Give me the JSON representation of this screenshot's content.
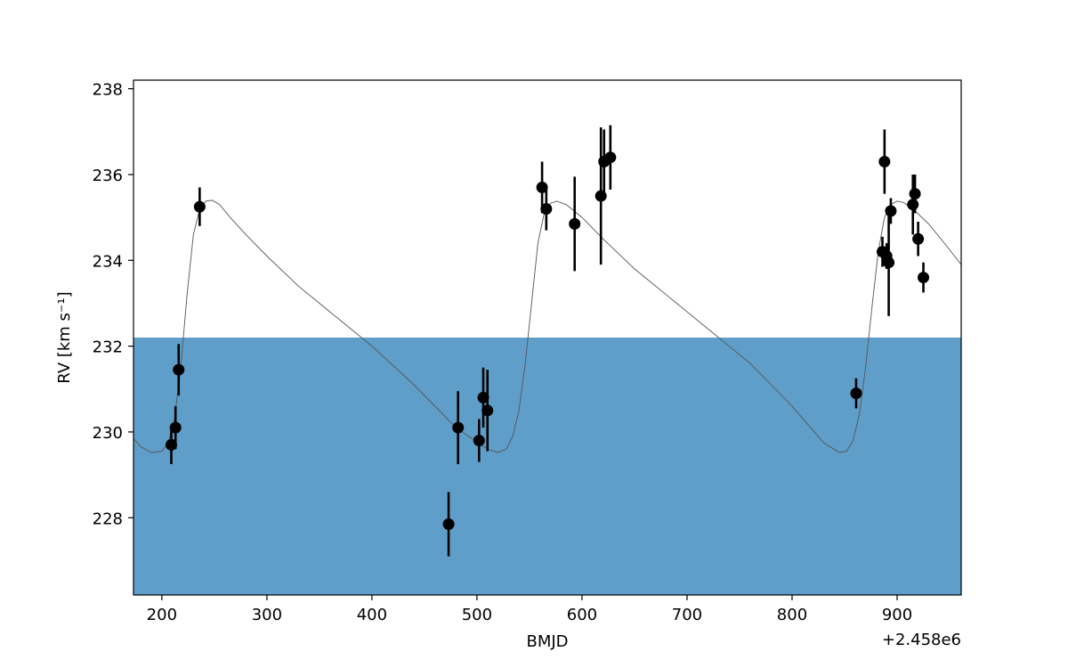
{
  "chart_data": {
    "type": "scatter",
    "title": "",
    "xlabel": "BMJD",
    "ylabel": "RV [km s⁻¹]",
    "x_offset_label": "+2.458e6",
    "xlim": [
      173,
      961
    ],
    "ylim": [
      226.2,
      238.2
    ],
    "xticks": [
      200,
      300,
      400,
      500,
      600,
      700,
      800,
      900
    ],
    "yticks": [
      228,
      230,
      232,
      234,
      236,
      238
    ],
    "grid": false,
    "shaded_band": {
      "y_from": 226.2,
      "y_to": 232.2,
      "color": "#5f9ec9"
    },
    "points": {
      "color": "#000000",
      "data": [
        {
          "x": 209,
          "y": 229.7,
          "err": 0.45
        },
        {
          "x": 213,
          "y": 230.1,
          "err": 0.5
        },
        {
          "x": 216,
          "y": 231.45,
          "err": 0.6
        },
        {
          "x": 236,
          "y": 235.25,
          "err": 0.45
        },
        {
          "x": 473,
          "y": 227.85,
          "err": 0.75
        },
        {
          "x": 482,
          "y": 230.1,
          "err": 0.85
        },
        {
          "x": 502,
          "y": 229.8,
          "err": 0.5
        },
        {
          "x": 506,
          "y": 230.8,
          "err": 0.7
        },
        {
          "x": 510,
          "y": 230.5,
          "err": 0.95
        },
        {
          "x": 562,
          "y": 235.7,
          "err": 0.6
        },
        {
          "x": 566,
          "y": 235.2,
          "err": 0.5
        },
        {
          "x": 593,
          "y": 234.85,
          "err": 1.1
        },
        {
          "x": 618,
          "y": 235.5,
          "err": 1.6
        },
        {
          "x": 621,
          "y": 236.3,
          "err": 0.75
        },
        {
          "x": 627,
          "y": 236.4,
          "err": 0.75
        },
        {
          "x": 861,
          "y": 230.9,
          "err": 0.35
        },
        {
          "x": 886,
          "y": 234.2,
          "err": 0.35
        },
        {
          "x": 888,
          "y": 236.3,
          "err": 0.75
        },
        {
          "x": 890,
          "y": 234.1,
          "err": 0.3
        },
        {
          "x": 892,
          "y": 233.95,
          "err": 1.25
        },
        {
          "x": 894,
          "y": 235.15,
          "err": 0.3
        },
        {
          "x": 915,
          "y": 235.3,
          "err": 0.7
        },
        {
          "x": 917,
          "y": 235.55,
          "err": 0.45
        },
        {
          "x": 920,
          "y": 234.5,
          "err": 0.4
        },
        {
          "x": 925,
          "y": 233.6,
          "err": 0.35
        }
      ]
    },
    "model": {
      "color": "#555555",
      "x": [
        173,
        180,
        190,
        200,
        206,
        212,
        218,
        224,
        230,
        236,
        242,
        248,
        255,
        265,
        280,
        300,
        330,
        360,
        400,
        440,
        480,
        510,
        520,
        528,
        534,
        540,
        546,
        552,
        558,
        564,
        570,
        576,
        585,
        600,
        620,
        650,
        680,
        720,
        760,
        800,
        830,
        845,
        852,
        858,
        864,
        870,
        876,
        882,
        888,
        894,
        900,
        906,
        915,
        930,
        945,
        961
      ],
      "y": [
        229.85,
        229.65,
        229.52,
        229.55,
        229.75,
        230.3,
        231.5,
        233.2,
        234.6,
        235.2,
        235.38,
        235.4,
        235.3,
        235.0,
        234.6,
        234.1,
        233.4,
        232.8,
        232.0,
        231.1,
        230.1,
        229.6,
        229.52,
        229.6,
        229.9,
        230.5,
        231.6,
        233.0,
        234.4,
        235.1,
        235.33,
        235.38,
        235.3,
        235.0,
        234.5,
        233.8,
        233.2,
        232.4,
        231.6,
        230.6,
        229.75,
        229.52,
        229.55,
        229.8,
        230.4,
        231.5,
        232.9,
        234.2,
        235.0,
        235.3,
        235.38,
        235.35,
        235.2,
        234.85,
        234.4,
        233.9
      ]
    }
  }
}
